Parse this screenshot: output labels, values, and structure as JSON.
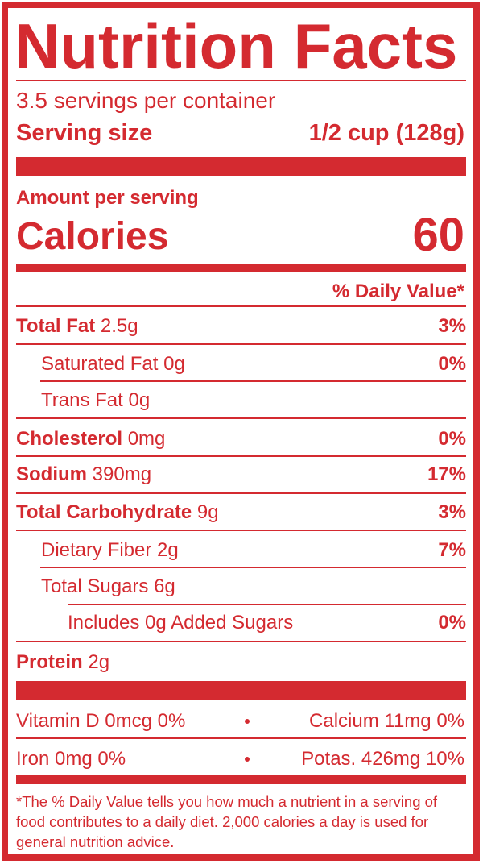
{
  "header": {
    "title": "Nutrition Facts",
    "servings": "3.5 servings per container",
    "serving_size_label": "Serving size",
    "serving_size_value": "1/2 cup (128g)"
  },
  "calories": {
    "amount_label": "Amount per serving",
    "label": "Calories",
    "value": 60
  },
  "daily_value_header": "% Daily Value*",
  "nutrients": [
    {
      "name": "Total Fat",
      "amount": "2.5g",
      "dv": "3%"
    },
    {
      "name": "Saturated Fat",
      "amount": "0g",
      "dv": "0%"
    },
    {
      "name": "Trans Fat",
      "amount": "0g"
    },
    {
      "name": "Cholesterol",
      "amount": "0mg",
      "dv": "0%"
    },
    {
      "name": "Sodium",
      "amount": "390mg",
      "dv": "17%"
    },
    {
      "name": "Total Carbohydrate",
      "amount": "9g",
      "dv": "3%"
    },
    {
      "name": "Dietary Fiber",
      "amount": "2g",
      "dv": "7%"
    },
    {
      "name": "Total Sugars",
      "amount": "6g"
    },
    {
      "name": "Includes 0g Added Sugars",
      "dv": "0%"
    },
    {
      "name": "Protein",
      "amount": "2g"
    }
  ],
  "micronutrients": [
    {
      "name": "Vitamin D",
      "amount": "0mcg",
      "dv": "0%"
    },
    {
      "name": "Calcium",
      "amount": "11mg",
      "dv": "0%"
    },
    {
      "name": "Iron",
      "amount": "0mg",
      "dv": "0%"
    },
    {
      "name": "Potas.",
      "amount": "426mg",
      "dv": "10%"
    }
  ],
  "footnote": "*The % Daily Value tells you how much a nutrient in a serving of food contributes to a daily diet. 2,000 calories a day is used for general nutrition advice."
}
